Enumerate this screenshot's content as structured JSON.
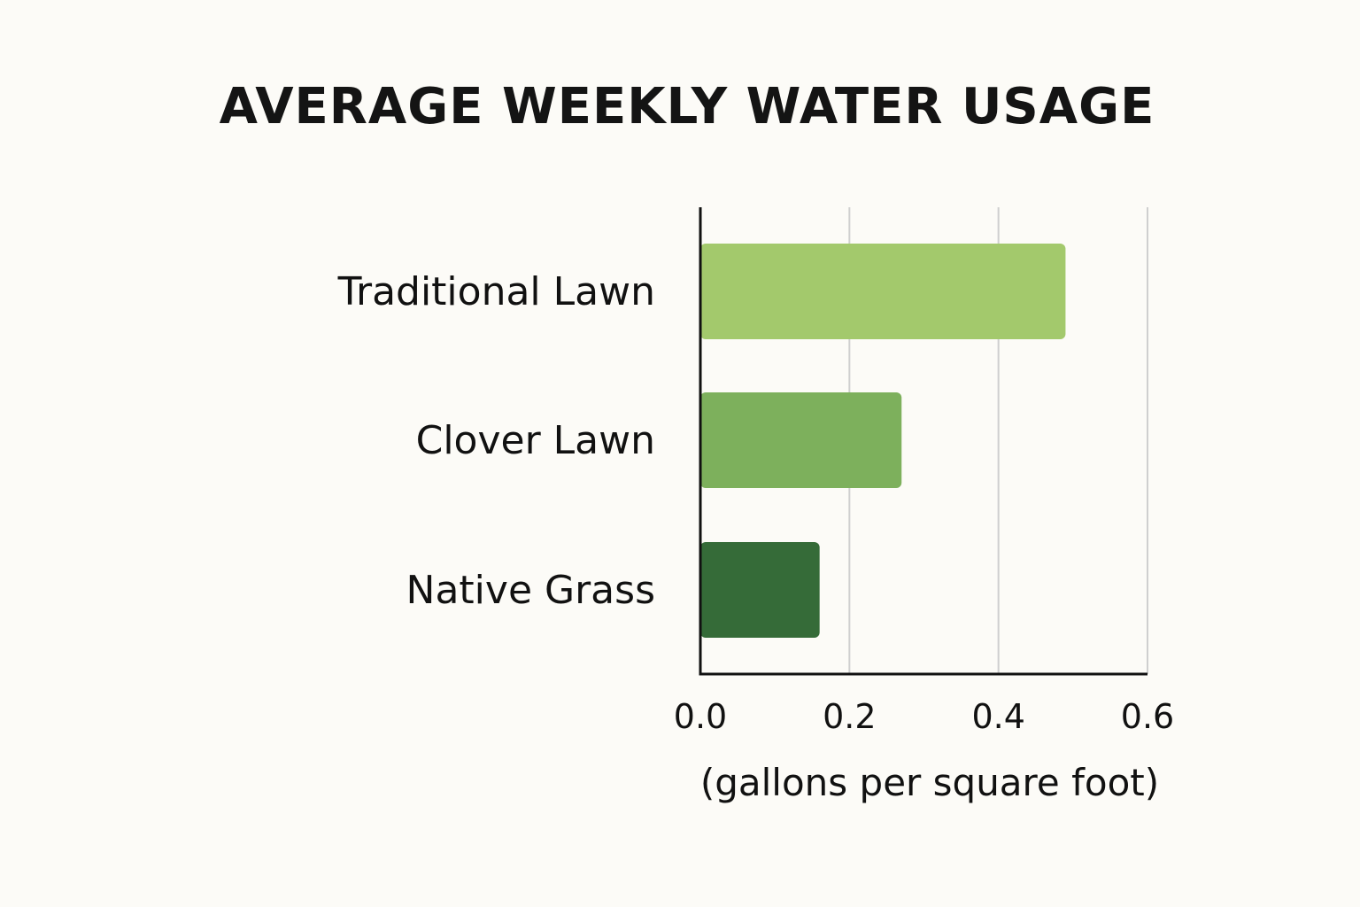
{
  "chart_data": {
    "type": "bar",
    "orientation": "horizontal",
    "title": "AVERAGE WEEKLY WATER USAGE",
    "xlabel": "(gallons per square foot)",
    "ylabel": "",
    "categories": [
      "Traditional Lawn",
      "Clover Lawn",
      "Native Grass"
    ],
    "values": [
      0.49,
      0.27,
      0.16
    ],
    "colors": [
      "#a3c96c",
      "#7db05c",
      "#356b38"
    ],
    "xlim": [
      0,
      0.6
    ],
    "xticks": [
      0.0,
      0.2,
      0.4,
      0.6
    ],
    "xtick_labels": [
      "0.0",
      "0.2",
      "0.4",
      "0.6"
    ],
    "grid": "vertical",
    "legend": "none"
  }
}
